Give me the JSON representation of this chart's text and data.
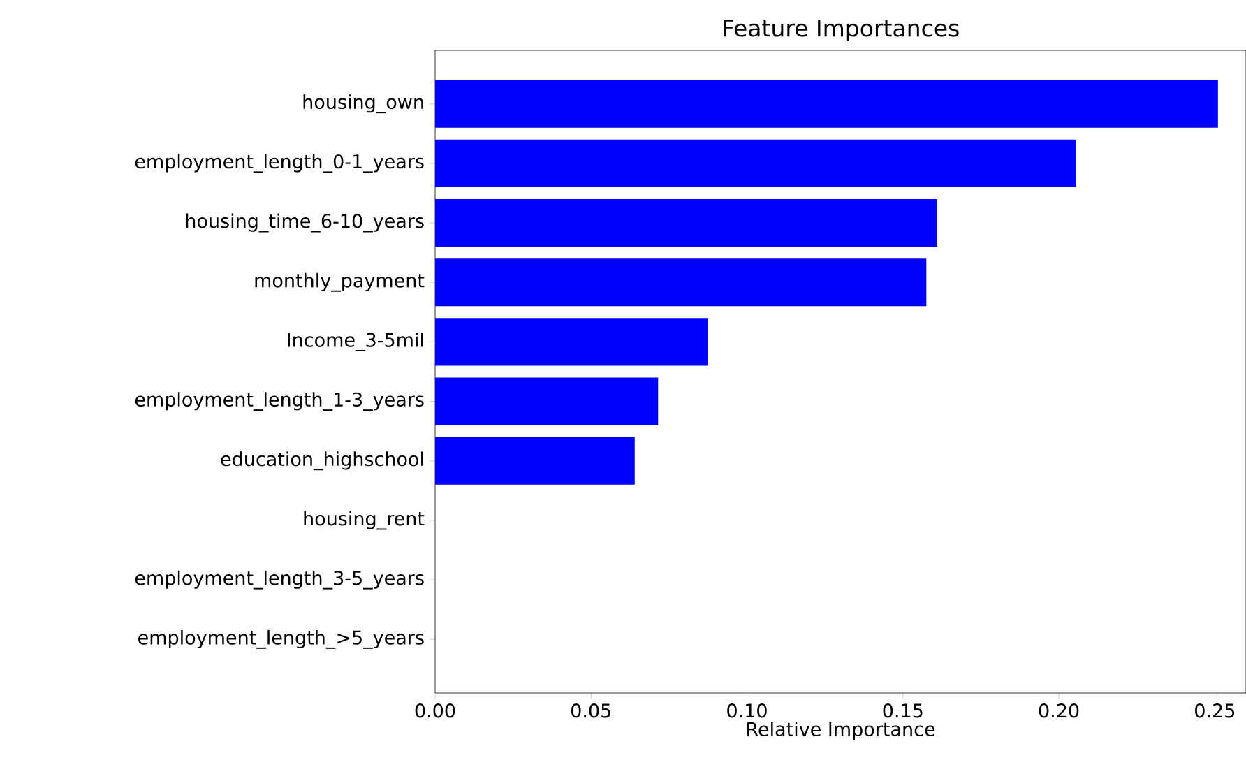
{
  "chart_data": {
    "type": "bar",
    "orientation": "horizontal",
    "title": "Feature Importances",
    "xlabel": "Relative Importance",
    "categories": [
      "housing_own",
      "employment_length_0-1_years",
      "housing_time_6-10_years",
      "monthly_payment",
      "Income_3-5mil",
      "employment_length_1-3_years",
      "education_highschool",
      "housing_rent",
      "employment_length_3-5_years",
      "employment_length_>5_years"
    ],
    "values": [
      0.251,
      0.2055,
      0.161,
      0.1575,
      0.0875,
      0.0715,
      0.064,
      0,
      0,
      0
    ],
    "color": "#0000ff",
    "xlim": [
      0,
      0.26
    ],
    "xticks": [
      {
        "value": 0,
        "label": "0.00"
      },
      {
        "value": 0.05,
        "label": "0.05"
      },
      {
        "value": 0.1,
        "label": "0.10"
      },
      {
        "value": 0.15,
        "label": "0.15"
      },
      {
        "value": 0.2,
        "label": "0.20"
      },
      {
        "value": 0.25,
        "label": "0.25"
      }
    ],
    "grid": false
  }
}
